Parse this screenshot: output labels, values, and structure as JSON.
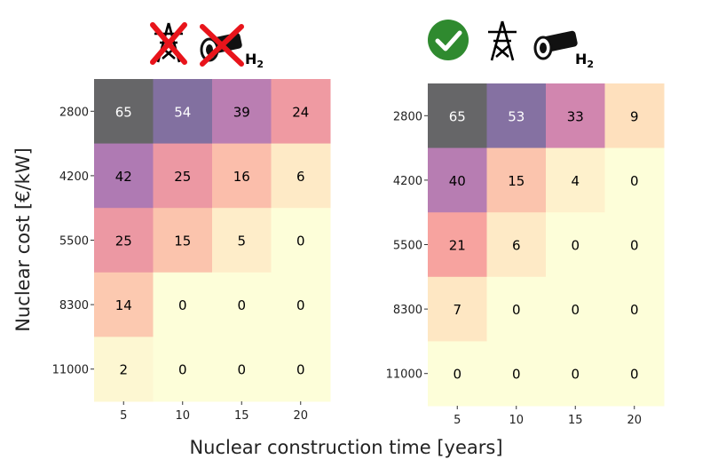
{
  "chart_data": [
    {
      "type": "heatmap",
      "panel_label": "Without transmission grid and without H2 network",
      "x_categories": [
        "5",
        "10",
        "15",
        "20"
      ],
      "y_categories": [
        "2800",
        "4200",
        "5500",
        "8300",
        "11000"
      ],
      "values": [
        [
          65,
          54,
          39,
          24
        ],
        [
          42,
          25,
          16,
          6
        ],
        [
          25,
          15,
          5,
          0
        ],
        [
          14,
          0,
          0,
          0
        ],
        [
          2,
          0,
          0,
          0
        ]
      ],
      "header_icons": [
        "pylon-crossed-icon",
        "pipeline-crossed-icon"
      ],
      "h2_label": "H",
      "h2_subscript": "2"
    },
    {
      "type": "heatmap",
      "panel_label": "With transmission grid and H2 network",
      "x_categories": [
        "5",
        "10",
        "15",
        "20"
      ],
      "y_categories": [
        "2800",
        "4200",
        "5500",
        "8300",
        "11000"
      ],
      "values": [
        [
          65,
          53,
          33,
          9
        ],
        [
          40,
          15,
          4,
          0
        ],
        [
          21,
          6,
          0,
          0
        ],
        [
          7,
          0,
          0,
          0
        ],
        [
          0,
          0,
          0,
          0
        ]
      ],
      "header_icons": [
        "checkmark-icon",
        "pylon-icon",
        "pipeline-icon"
      ],
      "h2_label": "H",
      "h2_subscript": "2"
    }
  ],
  "axes": {
    "xlabel": "Nuclear construction time [years]",
    "ylabel": "Nuclear cost [€/kW]"
  },
  "colormap": {
    "name": "magma_r",
    "vmin": 0,
    "vmax": 65,
    "stops": [
      "#fcfdbf",
      "#fec287",
      "#f1605d",
      "#b5367a",
      "#721f81",
      "#2d1160",
      "#000004"
    ],
    "light_text_color": "#ffffff",
    "dark_text_color": "#000000",
    "cell_alpha": 0.6
  },
  "icon_colors": {
    "cross": "#e8141b",
    "check_circle": "#2f8a2f",
    "ink": "#000000"
  }
}
